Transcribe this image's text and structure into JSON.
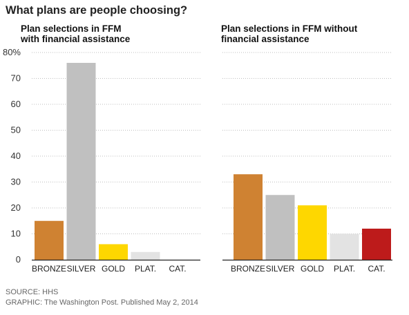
{
  "header": {
    "title": "What plans are people choosing?"
  },
  "chart_data": [
    {
      "type": "bar",
      "title_lines": [
        "Plan selections in FFM",
        "with financial assistance"
      ],
      "categories": [
        "BRONZE",
        "SILVER",
        "GOLD",
        "PLAT.",
        "CAT."
      ],
      "values": [
        15,
        76,
        6,
        3,
        0
      ],
      "colors": [
        "#cf8232",
        "#c0c0c0",
        "#fed700",
        "#e3e3e3",
        "#bd1b1b"
      ],
      "ylim": [
        0,
        80
      ],
      "yticks": [
        0,
        10,
        20,
        30,
        40,
        50,
        60,
        70,
        80
      ],
      "ytick_labels": [
        "0",
        "10",
        "20",
        "30",
        "40",
        "50",
        "60",
        "70",
        "80%"
      ],
      "grid": true
    },
    {
      "type": "bar",
      "title_lines": [
        "Plan selections in FFM without",
        "financial assistance"
      ],
      "categories": [
        "BRONZE",
        "SILVER",
        "GOLD",
        "PLAT.",
        "CAT."
      ],
      "values": [
        33,
        25,
        21,
        10,
        12
      ],
      "colors": [
        "#cf8232",
        "#c0c0c0",
        "#fed700",
        "#e3e3e3",
        "#bd1b1b"
      ],
      "ylim": [
        0,
        80
      ],
      "grid": true
    }
  ],
  "footer": {
    "source": "SOURCE: HHS",
    "credit": "GRAPHIC: The Washington Post. Published May 2, 2014"
  }
}
